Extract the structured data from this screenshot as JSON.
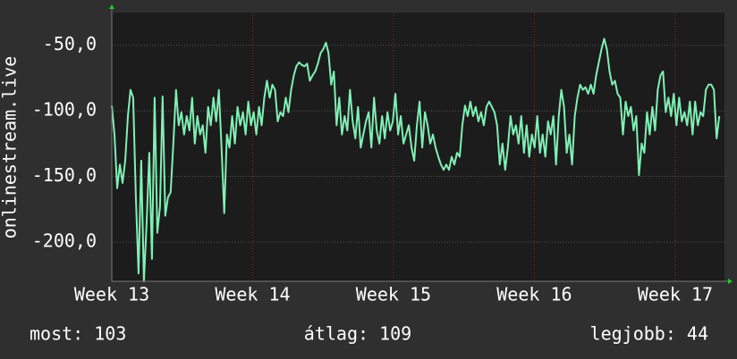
{
  "chart_data": {
    "type": "line",
    "ylabel": "onlinestream.live",
    "xlim": [
      13,
      17.35
    ],
    "xticks": [
      {
        "value": 13,
        "label": "Week 13"
      },
      {
        "value": 14,
        "label": "Week 14"
      },
      {
        "value": 15,
        "label": "Week 15"
      },
      {
        "value": 16,
        "label": "Week 16"
      },
      {
        "value": 17,
        "label": "Week 17"
      }
    ],
    "ylim": [
      -230,
      -25
    ],
    "yticks": [
      {
        "value": -200,
        "label": "-200,0"
      },
      {
        "value": -150,
        "label": "-150,0"
      },
      {
        "value": -100,
        "label": "-100,0"
      },
      {
        "value": -50,
        "label": "-50,0"
      }
    ],
    "grid": true,
    "legend": [
      "most: 103",
      "átlag: 109",
      "legjobb: 44"
    ],
    "x": [
      13,
      13.019,
      13.038,
      13.057,
      13.076,
      13.095,
      13.114,
      13.133,
      13.152,
      13.171,
      13.19,
      13.209,
      13.228,
      13.247,
      13.266,
      13.285,
      13.304,
      13.323,
      13.342,
      13.361,
      13.38,
      13.399,
      13.418,
      13.437,
      13.456,
      13.475,
      13.494,
      13.513,
      13.532,
      13.551,
      13.57,
      13.589,
      13.608,
      13.627,
      13.646,
      13.665,
      13.684,
      13.703,
      13.722,
      13.741,
      13.76,
      13.779,
      13.798,
      13.817,
      13.836,
      13.855,
      13.874,
      13.893,
      13.912,
      13.931,
      13.95,
      13.969,
      13.988,
      14.007,
      14.026,
      14.045,
      14.064,
      14.083,
      14.102,
      14.121,
      14.14,
      14.159,
      14.178,
      14.197,
      14.216,
      14.235,
      14.254,
      14.273,
      14.292,
      14.311,
      14.33,
      14.349,
      14.368,
      14.387,
      14.406,
      14.425,
      14.444,
      14.463,
      14.482,
      14.501,
      14.52,
      14.539,
      14.558,
      14.577,
      14.596,
      14.615,
      14.634,
      14.653,
      14.672,
      14.691,
      14.71,
      14.729,
      14.748,
      14.767,
      14.786,
      14.805,
      14.824,
      14.843,
      14.862,
      14.881,
      14.9,
      14.919,
      14.938,
      14.957,
      14.976,
      14.995,
      15.014,
      15.033,
      15.052,
      15.071,
      15.09,
      15.109,
      15.128,
      15.147,
      15.166,
      15.185,
      15.204,
      15.223,
      15.242,
      15.261,
      15.28,
      15.299,
      15.318,
      15.337,
      15.356,
      15.375,
      15.394,
      15.413,
      15.432,
      15.451,
      15.47,
      15.489,
      15.508,
      15.527,
      15.546,
      15.565,
      15.584,
      15.603,
      15.622,
      15.641,
      15.66,
      15.679,
      15.698,
      15.717,
      15.736,
      15.755,
      15.774,
      15.793,
      15.812,
      15.831,
      15.85,
      15.869,
      15.888,
      15.907,
      15.926,
      15.945,
      15.964,
      15.983,
      16.002,
      16.021,
      16.04,
      16.059,
      16.078,
      16.097,
      16.116,
      16.135,
      16.154,
      16.173,
      16.192,
      16.211,
      16.23,
      16.249,
      16.268,
      16.287,
      16.306,
      16.325,
      16.344,
      16.363,
      16.382,
      16.401,
      16.42,
      16.439,
      16.458,
      16.477,
      16.496,
      16.515,
      16.534,
      16.553,
      16.572,
      16.591,
      16.61,
      16.629,
      16.648,
      16.667,
      16.686,
      16.705,
      16.724,
      16.743,
      16.762,
      16.781,
      16.8,
      16.819,
      16.838,
      16.857,
      16.876,
      16.895,
      16.914,
      16.933,
      16.952,
      16.971,
      16.99,
      17.009,
      17.028,
      17.047,
      17.066,
      17.085,
      17.104,
      17.123,
      17.142,
      17.161,
      17.18,
      17.199,
      17.218,
      17.237,
      17.256,
      17.275,
      17.294,
      17.313
    ],
    "series": [
      {
        "color": "#80f0b4",
        "values": [
          -96,
          -118,
          -159,
          -141,
          -155,
          -138,
          -104,
          -84,
          -90,
          -166,
          -224,
          -138,
          -230,
          -186,
          -132,
          -213,
          -90,
          -193,
          -173,
          -89,
          -180,
          -166,
          -162,
          -125,
          -84,
          -111,
          -101,
          -118,
          -104,
          -115,
          -90,
          -125,
          -104,
          -118,
          -111,
          -132,
          -97,
          -111,
          -90,
          -108,
          -84,
          -128,
          -178,
          -118,
          -128,
          -104,
          -125,
          -97,
          -111,
          -101,
          -118,
          -93,
          -111,
          -101,
          -118,
          -97,
          -111,
          -90,
          -77,
          -90,
          -80,
          -84,
          -108,
          -101,
          -104,
          -90,
          -101,
          -84,
          -73,
          -66,
          -63,
          -65,
          -66,
          -64,
          -77,
          -73,
          -70,
          -64,
          -56,
          -53,
          -48,
          -56,
          -80,
          -70,
          -111,
          -90,
          -118,
          -104,
          -115,
          -84,
          -108,
          -121,
          -97,
          -128,
          -118,
          -108,
          -101,
          -128,
          -90,
          -115,
          -125,
          -104,
          -121,
          -101,
          -115,
          -108,
          -87,
          -118,
          -104,
          -125,
          -118,
          -111,
          -128,
          -138,
          -111,
          -93,
          -128,
          -101,
          -111,
          -125,
          -118,
          -128,
          -135,
          -141,
          -145,
          -141,
          -145,
          -135,
          -141,
          -132,
          -135,
          -111,
          -96,
          -104,
          -93,
          -104,
          -97,
          -108,
          -101,
          -111,
          -97,
          -93,
          -97,
          -101,
          -111,
          -141,
          -125,
          -145,
          -128,
          -104,
          -118,
          -111,
          -125,
          -104,
          -132,
          -111,
          -135,
          -118,
          -128,
          -104,
          -132,
          -118,
          -135,
          -108,
          -118,
          -104,
          -141,
          -104,
          -84,
          -97,
          -132,
          -118,
          -141,
          -104,
          -90,
          -80,
          -84,
          -82,
          -87,
          -80,
          -87,
          -73,
          -63,
          -53,
          -45,
          -53,
          -70,
          -80,
          -77,
          -87,
          -90,
          -118,
          -93,
          -104,
          -97,
          -115,
          -104,
          -149,
          -125,
          -132,
          -101,
          -118,
          -97,
          -115,
          -84,
          -73,
          -70,
          -101,
          -90,
          -104,
          -87,
          -111,
          -90,
          -108,
          -101,
          -111,
          -93,
          -118,
          -93,
          -111,
          -101,
          -104,
          -84,
          -80,
          -80,
          -84,
          -121,
          -104
        ]
      }
    ]
  }
}
